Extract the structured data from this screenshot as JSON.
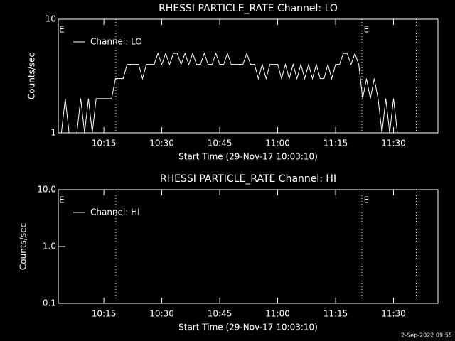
{
  "chart_data": [
    {
      "type": "line",
      "title": "RHESSI PARTICLE_RATE Channel: LO",
      "xlabel": "Start Time (29-Nov-17 10:03:10)",
      "ylabel": "Counts/sec",
      "ylog": true,
      "ylim": [
        1,
        10
      ],
      "yticks": [
        1,
        10
      ],
      "xlim": [
        603.2,
        701.5
      ],
      "xticks": [
        {
          "value": 615,
          "label": "10:15"
        },
        {
          "value": 630,
          "label": "10:30"
        },
        {
          "value": 645,
          "label": "10:45"
        },
        {
          "value": 660,
          "label": "11:00"
        },
        {
          "value": 675,
          "label": "11:15"
        },
        {
          "value": 690,
          "label": "11:30"
        }
      ],
      "vlines": [
        618.1,
        681.8,
        695.9
      ],
      "annotations": [
        {
          "text": "E",
          "x": 603.2
        },
        {
          "text": "E",
          "x": 682.1
        }
      ],
      "x": [
        604,
        605,
        606,
        607,
        608,
        609,
        610,
        611,
        612,
        613,
        614,
        615,
        616,
        617,
        618,
        619,
        620,
        621,
        622,
        623,
        624,
        625,
        626,
        627,
        628,
        629,
        630,
        631,
        632,
        633,
        634,
        635,
        636,
        637,
        638,
        639,
        640,
        641,
        642,
        643,
        644,
        645,
        646,
        647,
        648,
        649,
        650,
        651,
        652,
        653,
        654,
        655,
        656,
        657,
        658,
        659,
        660,
        661,
        662,
        663,
        664,
        665,
        666,
        667,
        668,
        669,
        670,
        671,
        672,
        673,
        674,
        675,
        676,
        677,
        678,
        679,
        680,
        681,
        682,
        683,
        684,
        685,
        686,
        687,
        688,
        689,
        690,
        691,
        692
      ],
      "series": [
        {
          "name": "Channel: LO",
          "color": "#ffffff",
          "values": [
            1,
            2,
            1,
            1,
            1,
            2,
            1,
            2,
            1,
            2,
            2,
            2,
            2,
            2,
            3,
            3,
            3,
            4,
            4,
            4,
            4,
            3,
            4,
            4,
            4,
            5,
            4,
            5,
            4,
            5,
            5,
            4,
            5,
            4,
            5,
            4,
            4,
            5,
            4,
            4,
            5,
            4,
            4,
            5,
            4,
            4,
            4,
            4,
            5,
            4,
            4,
            3,
            4,
            3,
            4,
            4,
            4,
            3,
            4,
            3,
            4,
            3,
            4,
            3,
            4,
            3,
            4,
            3,
            3,
            4,
            3,
            4,
            4,
            5,
            5,
            4,
            5,
            4,
            2,
            3,
            2,
            3,
            2,
            1,
            2,
            1,
            2,
            1,
            1
          ]
        }
      ]
    },
    {
      "type": "line",
      "title": "RHESSI PARTICLE_RATE Channel: HI",
      "xlabel": "Start Time (29-Nov-17 10:03:10)",
      "ylabel": "Counts/sec",
      "ylog": true,
      "ylim": [
        0.1,
        10
      ],
      "yticks": [
        {
          "value": 0.1,
          "label": "0.1"
        },
        {
          "value": 1,
          "label": "1.0"
        },
        {
          "value": 10,
          "label": "10.0"
        }
      ],
      "xlim": [
        603.2,
        701.5
      ],
      "xticks": [
        {
          "value": 615,
          "label": "10:15"
        },
        {
          "value": 630,
          "label": "10:30"
        },
        {
          "value": 645,
          "label": "10:45"
        },
        {
          "value": 660,
          "label": "11:00"
        },
        {
          "value": 675,
          "label": "11:15"
        },
        {
          "value": 690,
          "label": "11:30"
        }
      ],
      "vlines": [
        618.1,
        681.8,
        695.9
      ],
      "annotations": [
        {
          "text": "E",
          "x": 603.2
        },
        {
          "text": "E",
          "x": 682.1
        }
      ],
      "series": [
        {
          "name": "Channel: HI",
          "color": "#ffffff"
        }
      ]
    }
  ],
  "footer": "2-Sep-2022 09:55"
}
